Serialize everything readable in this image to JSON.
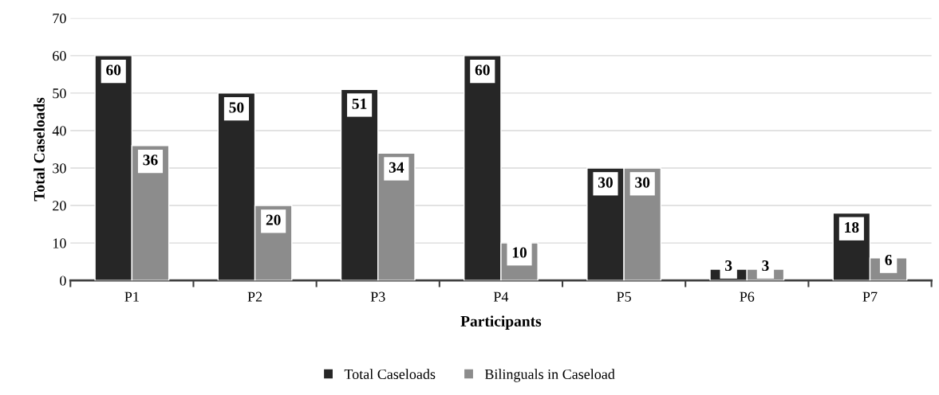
{
  "chart_data": {
    "type": "bar",
    "xlabel": "Participants",
    "ylabel": "Total Caseloads",
    "categories": [
      "P1",
      "P2",
      "P3",
      "P4",
      "P5",
      "P6",
      "P7"
    ],
    "series": [
      {
        "name": "Total Caseloads",
        "color": "#262626",
        "values": [
          60,
          50,
          51,
          60,
          30,
          3,
          18
        ]
      },
      {
        "name": "Bilinguals in Caseload",
        "color": "#8c8c8c",
        "values": [
          36,
          20,
          34,
          10,
          30,
          3,
          6
        ]
      }
    ],
    "ylim": [
      0,
      70
    ],
    "yticks": [
      0,
      10,
      20,
      30,
      40,
      50,
      60,
      70
    ],
    "grid": "y",
    "legend": "bottom",
    "data_labels": true
  }
}
